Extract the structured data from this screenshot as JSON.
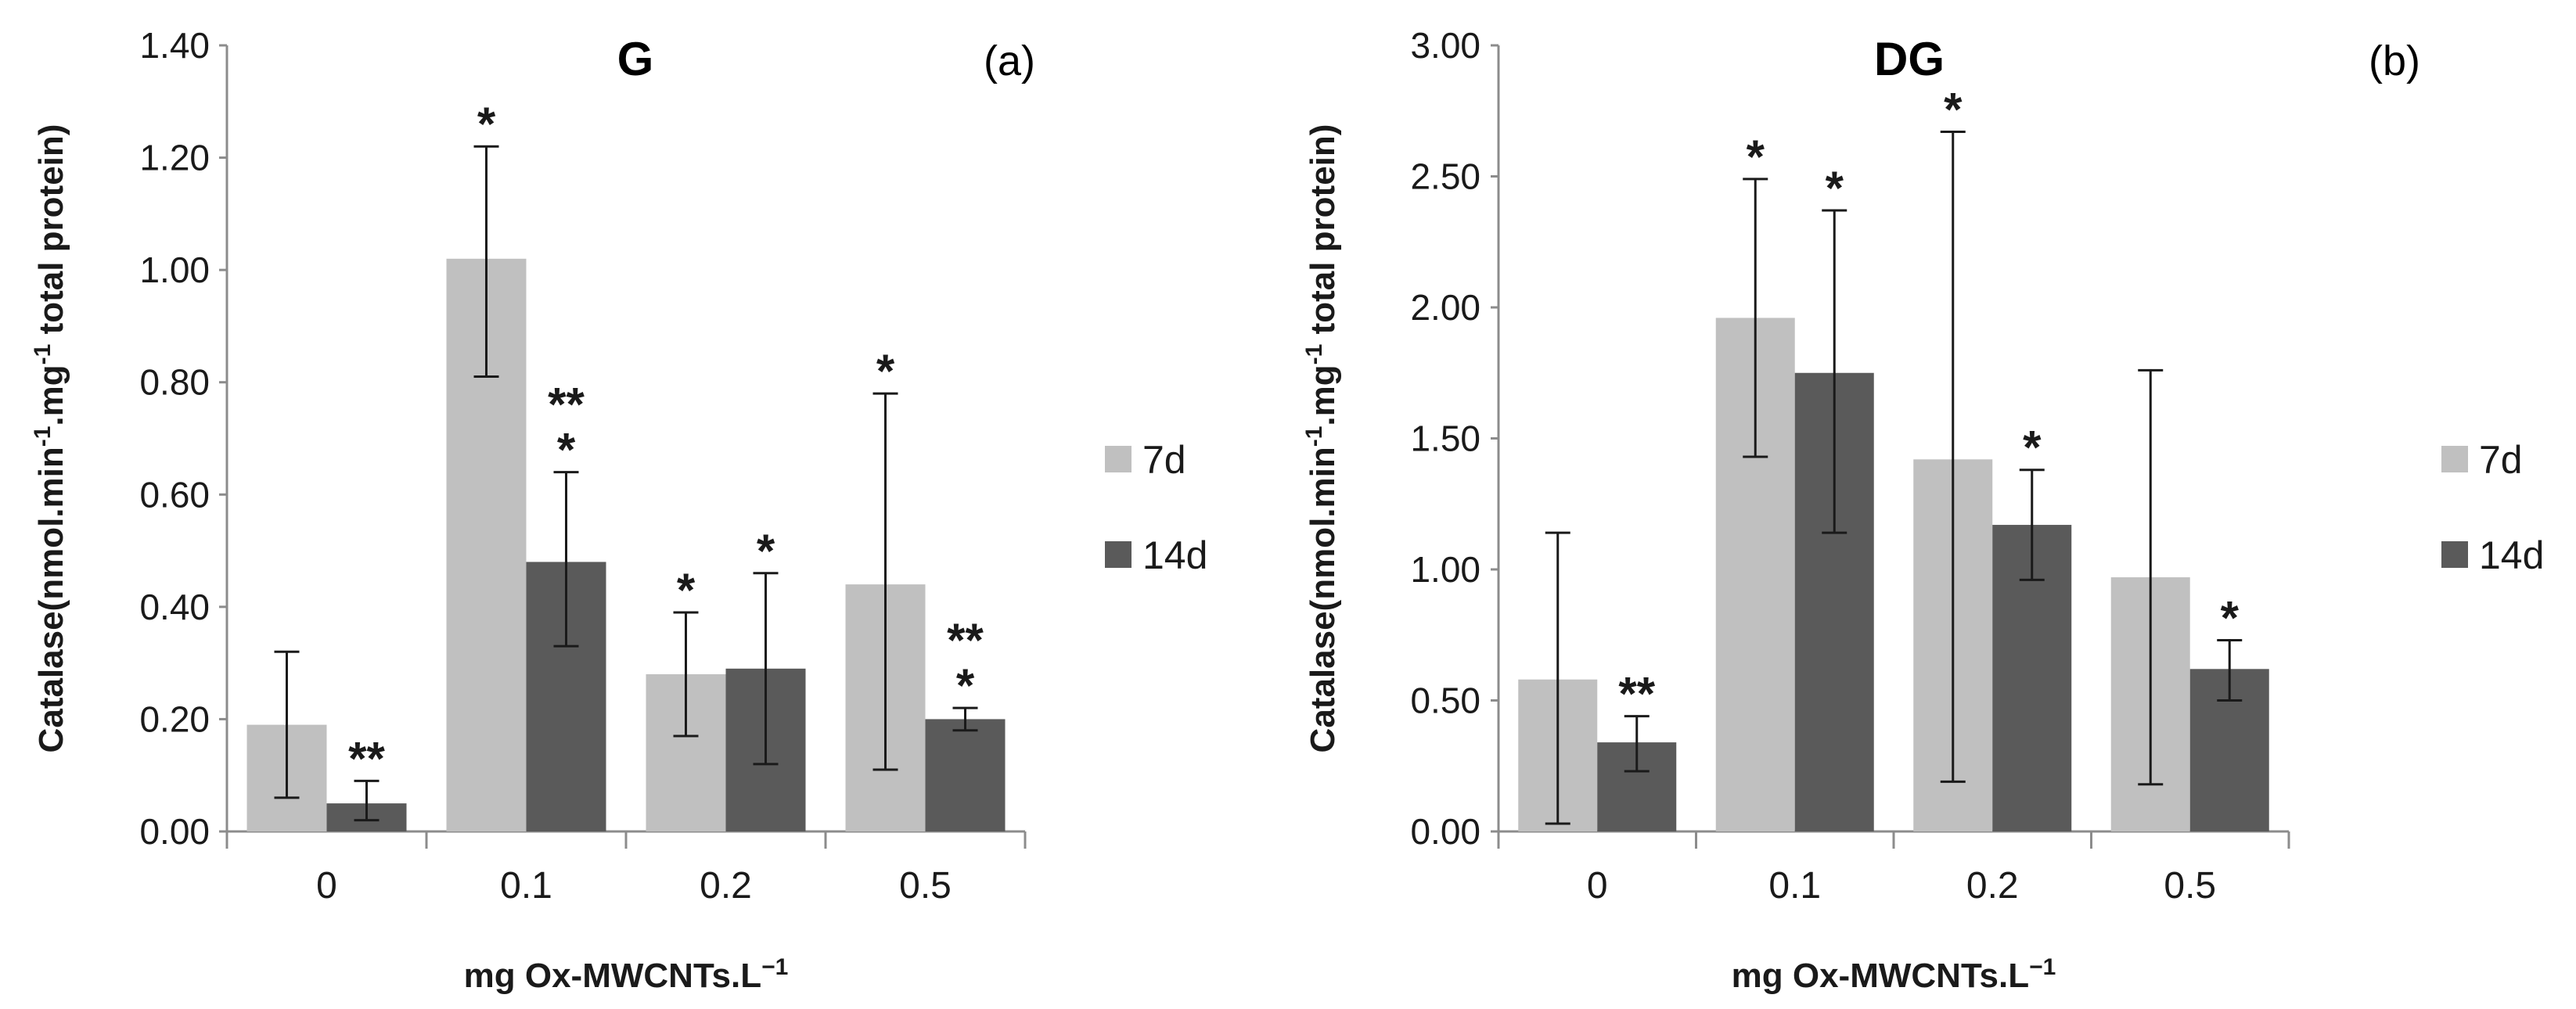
{
  "chart_data": [
    {
      "type": "bar",
      "title": "G",
      "panel_label": "(a)",
      "xlabel": "mg Ox-MWCNTs.L",
      "xlabel_superscript": "−1",
      "ylabel_parts": [
        "Catalase(nmol.min",
        "-1",
        ".mg",
        "-1",
        " total protein)"
      ],
      "ylim": [
        0,
        1.4
      ],
      "yticks": [
        0.0,
        0.2,
        0.4,
        0.6,
        0.8,
        1.0,
        1.2,
        1.4
      ],
      "ytick_labels": [
        "0.00",
        "0.20",
        "0.40",
        "0.60",
        "0.80",
        "1.00",
        "1.20",
        "1.40"
      ],
      "categories": [
        "0",
        "0.1",
        "0.2",
        "0.5"
      ],
      "series": [
        {
          "name": "7d",
          "color": "#c0c0c0",
          "values": [
            0.19,
            1.02,
            0.28,
            0.44
          ],
          "error_low": [
            0.06,
            0.81,
            0.17,
            0.11
          ],
          "error_high": [
            0.32,
            1.22,
            0.39,
            0.78
          ],
          "significance": [
            [
              "",
              ""
            ],
            [
              "*"
            ],
            [
              "*"
            ],
            [
              "*"
            ]
          ]
        },
        {
          "name": "14d",
          "color": "#5a5a5a",
          "values": [
            0.05,
            0.48,
            0.29,
            0.2
          ],
          "error_low": [
            0.02,
            0.33,
            0.12,
            0.18
          ],
          "error_high": [
            0.09,
            0.64,
            0.46,
            0.22
          ],
          "significance": [
            [
              "**"
            ],
            [
              "**",
              "*"
            ],
            [
              "*"
            ],
            [
              "**",
              "*"
            ]
          ]
        }
      ],
      "legend": [
        "7d",
        "14d"
      ],
      "legend_position": "right"
    },
    {
      "type": "bar",
      "title": "DG",
      "panel_label": "(b)",
      "xlabel": "mg Ox-MWCNTs.L",
      "xlabel_superscript": "−1",
      "ylabel_parts": [
        "Catalase(nmol.min",
        "-1",
        ".mg",
        "-1",
        " total protein)"
      ],
      "ylim": [
        0,
        3.0
      ],
      "yticks": [
        0.0,
        0.5,
        1.0,
        1.5,
        2.0,
        2.5,
        3.0
      ],
      "ytick_labels": [
        "0.00",
        "0.50",
        "1.00",
        "1.50",
        "2.00",
        "2.50",
        "3.00"
      ],
      "categories": [
        "0",
        "0.1",
        "0.2",
        "0.5"
      ],
      "series": [
        {
          "name": "7d",
          "color": "#c0c0c0",
          "values": [
            0.58,
            1.96,
            1.42,
            0.97
          ],
          "error_low": [
            0.03,
            1.43,
            0.19,
            0.18
          ],
          "error_high": [
            1.14,
            2.49,
            2.67,
            1.76
          ],
          "significance": [
            [],
            [
              "*"
            ],
            [
              "*"
            ],
            []
          ]
        },
        {
          "name": "14d",
          "color": "#5a5a5a",
          "values": [
            0.34,
            1.75,
            1.17,
            0.62
          ],
          "error_low": [
            0.23,
            1.14,
            0.96,
            0.5
          ],
          "error_high": [
            0.44,
            2.37,
            1.38,
            0.73
          ],
          "significance": [
            [
              "**"
            ],
            [
              "*"
            ],
            [
              "*"
            ],
            [
              "*"
            ]
          ]
        }
      ],
      "legend": [
        "7d",
        "14d"
      ],
      "legend_position": "right"
    }
  ]
}
